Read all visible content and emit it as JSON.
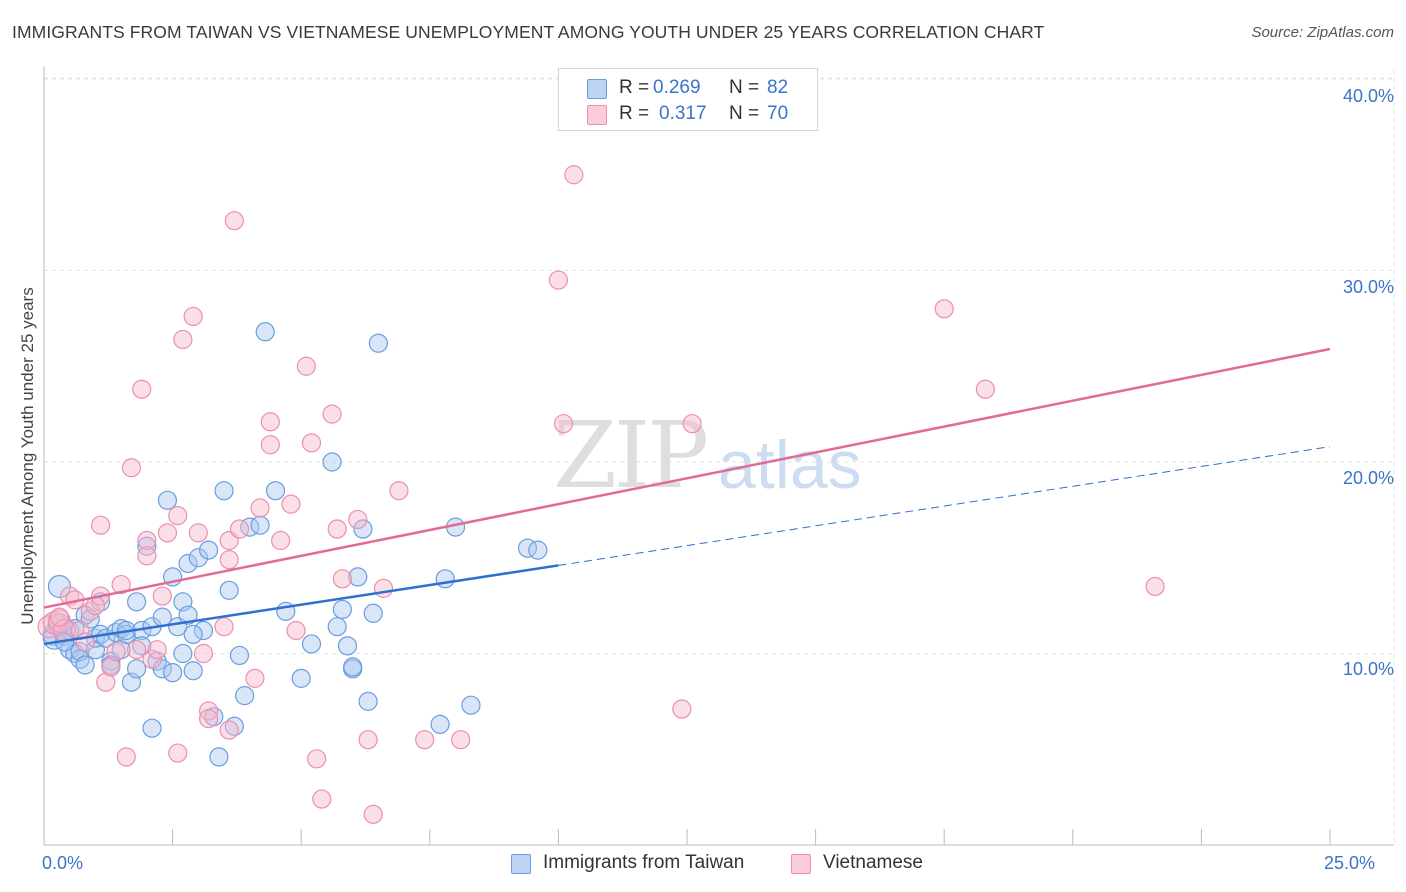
{
  "header": {
    "title": "IMMIGRANTS FROM TAIWAN VS VIETNAMESE UNEMPLOYMENT AMONG YOUTH UNDER 25 YEARS CORRELATION CHART",
    "source": "Source: ZipAtlas.com"
  },
  "watermark": {
    "zip": "ZIP",
    "atlas": "atlas"
  },
  "legend_top": {
    "series1": {
      "r_label": "R =",
      "r_value": "0.269",
      "n_label": "N =",
      "n_value": "82"
    },
    "series2": {
      "r_label": "R =",
      "r_value": "0.317",
      "n_label": "N =",
      "n_value": "70"
    }
  },
  "legend_bottom": {
    "series1": "Immigrants from Taiwan",
    "series2": "Vietnamese"
  },
  "colors": {
    "taiwan_fill": "#a9c8f0",
    "taiwan_stroke": "#6a9de0",
    "taiwan_line": "#2f6fcf",
    "viet_fill": "#f6b8cc",
    "viet_stroke": "#ec8fae",
    "viet_line": "#e06a98",
    "grid": "#e3e3e3",
    "tick_text": "#3b74c8"
  },
  "chart_data": {
    "type": "scatter",
    "title": "IMMIGRANTS FROM TAIWAN VS VIETNAMESE UNEMPLOYMENT AMONG YOUTH UNDER 25 YEARS CORRELATION CHART",
    "xlabel": "",
    "ylabel": "Unemployment Among Youth under 25 years",
    "xlim": [
      0,
      25
    ],
    "ylim": [
      0,
      40
    ],
    "x_tick_labels": [
      "0.0%",
      "25.0%"
    ],
    "y_tick_labels": [
      "10.0%",
      "20.0%",
      "30.0%",
      "40.0%"
    ],
    "y_ticks": [
      10,
      20,
      30,
      40
    ],
    "series": [
      {
        "name": "Immigrants from Taiwan",
        "r": 0.269,
        "n": 82,
        "trend": {
          "x0": 0,
          "y0": 10.5,
          "x1": 10.0,
          "y1": 14.6,
          "dashed_to_x": 25.0,
          "dashed_to_y": 20.8
        },
        "points": [
          [
            0.2,
            11.0
          ],
          [
            0.2,
            10.8
          ],
          [
            0.3,
            11.5
          ],
          [
            0.3,
            13.5
          ],
          [
            0.4,
            10.9
          ],
          [
            0.5,
            11.2
          ],
          [
            0.5,
            10.2
          ],
          [
            0.6,
            10.0
          ],
          [
            0.7,
            9.7
          ],
          [
            0.7,
            10.1
          ],
          [
            0.8,
            12.0
          ],
          [
            0.8,
            9.4
          ],
          [
            0.9,
            11.8
          ],
          [
            1.0,
            10.2
          ],
          [
            1.0,
            10.8
          ],
          [
            1.1,
            11.0
          ],
          [
            1.1,
            12.7
          ],
          [
            1.2,
            10.8
          ],
          [
            1.3,
            9.6
          ],
          [
            1.4,
            11.1
          ],
          [
            1.5,
            10.2
          ],
          [
            1.5,
            11.3
          ],
          [
            1.6,
            11.0
          ],
          [
            1.6,
            11.2
          ],
          [
            1.7,
            8.5
          ],
          [
            1.8,
            9.2
          ],
          [
            1.8,
            12.7
          ],
          [
            1.9,
            11.2
          ],
          [
            2.0,
            15.6
          ],
          [
            2.1,
            6.1
          ],
          [
            2.1,
            11.4
          ],
          [
            2.2,
            9.6
          ],
          [
            2.3,
            9.2
          ],
          [
            2.3,
            11.9
          ],
          [
            2.4,
            18.0
          ],
          [
            2.5,
            14.0
          ],
          [
            2.5,
            9.0
          ],
          [
            2.6,
            11.4
          ],
          [
            2.7,
            10.0
          ],
          [
            2.7,
            12.7
          ],
          [
            2.8,
            12.0
          ],
          [
            2.8,
            14.7
          ],
          [
            2.9,
            9.1
          ],
          [
            3.0,
            15.0
          ],
          [
            3.1,
            11.2
          ],
          [
            3.2,
            15.4
          ],
          [
            3.3,
            6.7
          ],
          [
            3.4,
            4.6
          ],
          [
            3.5,
            18.5
          ],
          [
            3.6,
            13.3
          ],
          [
            3.7,
            6.2
          ],
          [
            3.9,
            7.8
          ],
          [
            4.0,
            16.6
          ],
          [
            4.2,
            16.7
          ],
          [
            4.3,
            26.8
          ],
          [
            4.5,
            18.5
          ],
          [
            4.7,
            12.2
          ],
          [
            5.0,
            8.7
          ],
          [
            5.2,
            10.5
          ],
          [
            5.6,
            20.0
          ],
          [
            5.7,
            11.4
          ],
          [
            5.8,
            12.3
          ],
          [
            5.9,
            10.4
          ],
          [
            6.0,
            9.2
          ],
          [
            6.0,
            9.3
          ],
          [
            6.1,
            14.0
          ],
          [
            6.2,
            16.5
          ],
          [
            6.3,
            7.5
          ],
          [
            6.4,
            12.1
          ],
          [
            6.5,
            26.2
          ],
          [
            7.7,
            6.3
          ],
          [
            7.8,
            13.9
          ],
          [
            8.0,
            16.6
          ],
          [
            8.3,
            7.3
          ],
          [
            9.4,
            15.5
          ],
          [
            9.6,
            15.4
          ],
          [
            0.4,
            10.6
          ],
          [
            0.6,
            11.3
          ],
          [
            1.3,
            9.4
          ],
          [
            2.9,
            11.0
          ],
          [
            3.8,
            9.9
          ],
          [
            1.9,
            10.4
          ]
        ]
      },
      {
        "name": "Vietnamese",
        "r": 0.317,
        "n": 70,
        "trend": {
          "x0": 0,
          "y0": 12.4,
          "x1": 25.0,
          "y1": 25.9
        },
        "points": [
          [
            0.1,
            11.4
          ],
          [
            0.2,
            11.6
          ],
          [
            0.3,
            11.7
          ],
          [
            0.4,
            11.2
          ],
          [
            0.5,
            13.0
          ],
          [
            0.6,
            12.8
          ],
          [
            0.7,
            11.2
          ],
          [
            0.8,
            10.6
          ],
          [
            0.9,
            12.2
          ],
          [
            1.1,
            16.7
          ],
          [
            1.1,
            13.0
          ],
          [
            1.2,
            8.5
          ],
          [
            1.3,
            9.3
          ],
          [
            1.4,
            10.1
          ],
          [
            1.5,
            13.6
          ],
          [
            1.6,
            4.6
          ],
          [
            1.7,
            19.7
          ],
          [
            1.8,
            10.2
          ],
          [
            1.9,
            23.8
          ],
          [
            2.0,
            15.9
          ],
          [
            2.0,
            15.1
          ],
          [
            2.1,
            9.7
          ],
          [
            2.2,
            10.2
          ],
          [
            2.3,
            13.0
          ],
          [
            2.4,
            16.3
          ],
          [
            2.6,
            4.8
          ],
          [
            2.6,
            17.2
          ],
          [
            2.7,
            26.4
          ],
          [
            2.9,
            27.6
          ],
          [
            3.0,
            16.3
          ],
          [
            3.1,
            10.0
          ],
          [
            3.2,
            7.0
          ],
          [
            3.2,
            6.6
          ],
          [
            3.5,
            11.4
          ],
          [
            3.6,
            14.9
          ],
          [
            3.6,
            15.9
          ],
          [
            3.6,
            6.0
          ],
          [
            3.7,
            32.6
          ],
          [
            3.8,
            16.5
          ],
          [
            4.1,
            8.7
          ],
          [
            4.2,
            17.6
          ],
          [
            4.4,
            22.1
          ],
          [
            4.4,
            20.9
          ],
          [
            4.6,
            15.9
          ],
          [
            4.8,
            17.8
          ],
          [
            4.9,
            11.2
          ],
          [
            5.1,
            25.0
          ],
          [
            5.2,
            21.0
          ],
          [
            5.3,
            4.5
          ],
          [
            5.4,
            2.4
          ],
          [
            5.6,
            22.5
          ],
          [
            5.7,
            16.5
          ],
          [
            5.8,
            13.9
          ],
          [
            6.1,
            17.0
          ],
          [
            6.3,
            5.5
          ],
          [
            6.4,
            1.6
          ],
          [
            6.6,
            13.4
          ],
          [
            6.9,
            18.5
          ],
          [
            7.4,
            5.5
          ],
          [
            8.1,
            5.5
          ],
          [
            10.0,
            29.5
          ],
          [
            10.1,
            22.0
          ],
          [
            10.3,
            35.0
          ],
          [
            12.6,
            22.0
          ],
          [
            12.4,
            7.1
          ],
          [
            17.5,
            28.0
          ],
          [
            18.3,
            23.8
          ],
          [
            21.6,
            13.5
          ],
          [
            0.3,
            11.9
          ],
          [
            1.0,
            12.5
          ]
        ]
      }
    ]
  },
  "axes": {
    "y_axis_label": "Unemployment Among Youth under 25 years",
    "x_min_label": "0.0%",
    "x_max_label": "25.0%",
    "y_labels": [
      "10.0%",
      "20.0%",
      "30.0%",
      "40.0%"
    ]
  }
}
